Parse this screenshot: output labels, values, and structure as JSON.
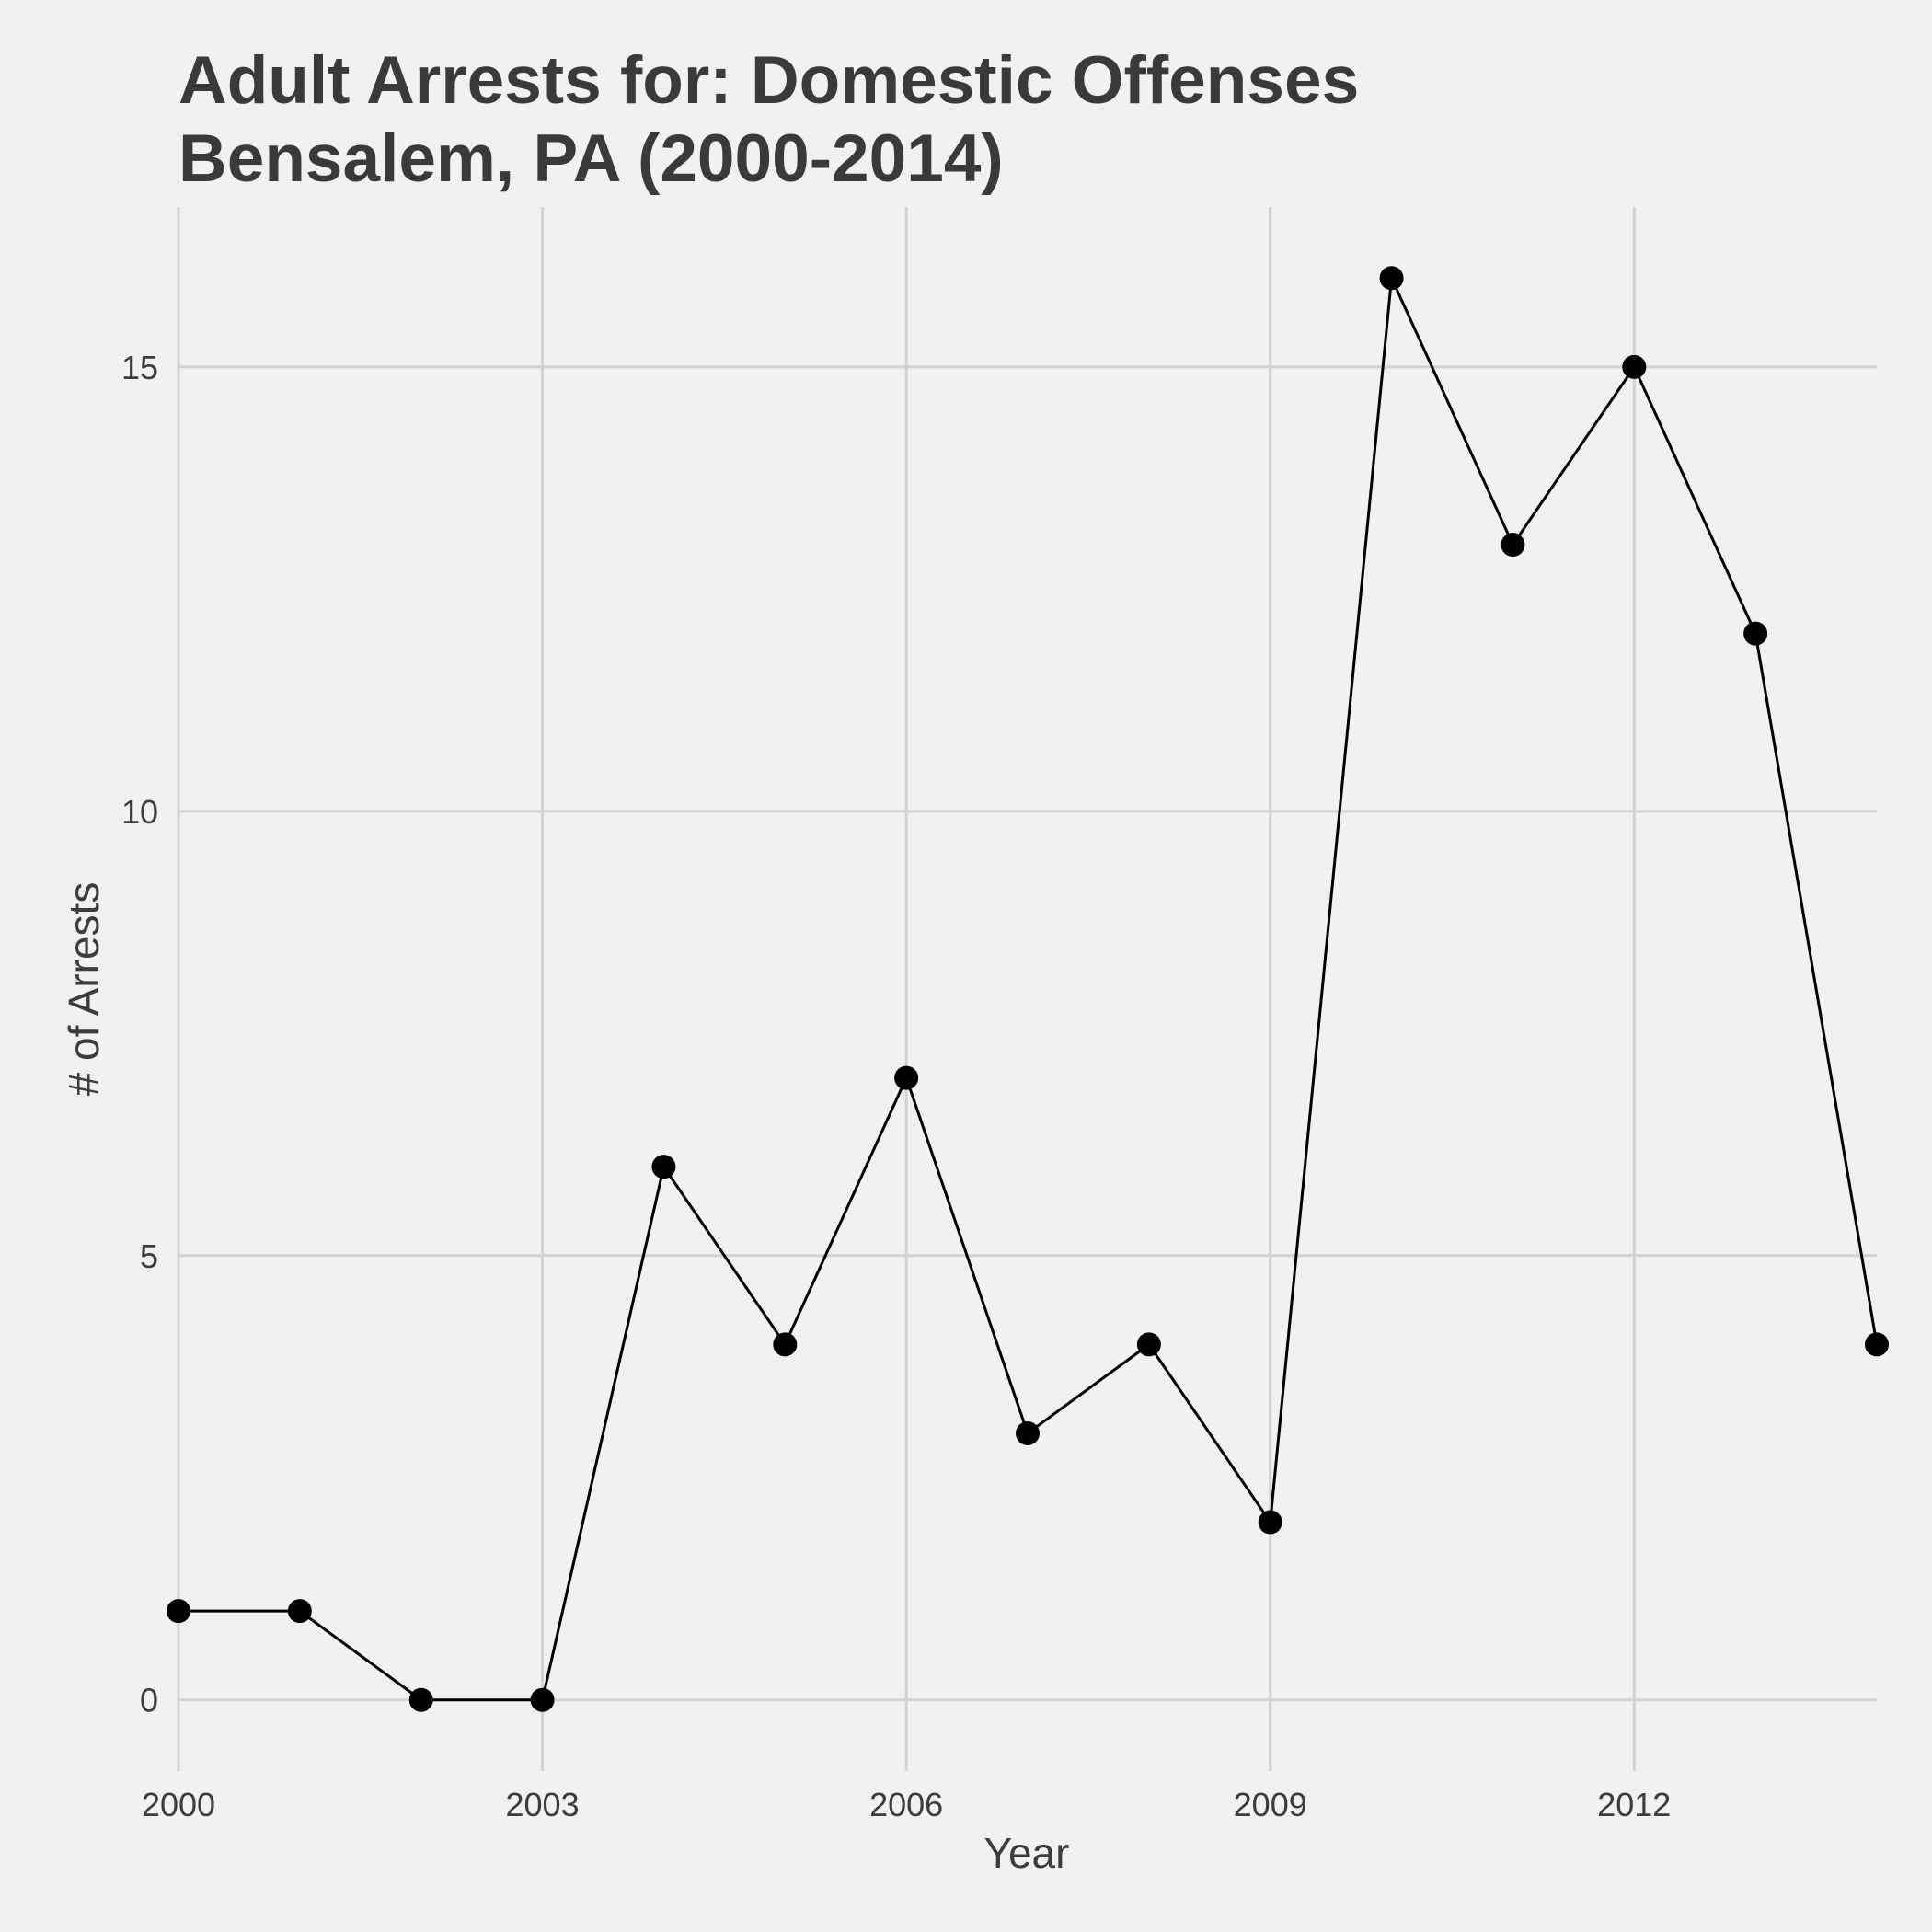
{
  "chart_data": {
    "type": "line",
    "title": "Adult Arrests for: Domestic Offenses",
    "subtitle": "Bensalem, PA (2000-2014)",
    "xlabel": "Year",
    "ylabel": "# of Arrests",
    "x": [
      2000,
      2001,
      2002,
      2003,
      2004,
      2005,
      2006,
      2007,
      2008,
      2009,
      2010,
      2011,
      2012,
      2013,
      2014
    ],
    "series": [
      {
        "values": [
          1,
          1,
          0,
          0,
          6,
          4,
          7,
          3,
          4,
          2,
          16,
          13,
          15,
          12,
          4
        ]
      }
    ],
    "xlim": [
      2000,
      2014
    ],
    "ylim": [
      -0.8,
      16.8
    ],
    "xticks": [
      2000,
      2003,
      2006,
      2009,
      2012
    ],
    "xtick_labels": [
      "2000",
      "2003",
      "2006",
      "2009",
      "2012"
    ],
    "yticks": [
      0,
      5,
      10,
      15
    ],
    "ytick_labels": [
      "0",
      "5",
      "10",
      "15"
    ],
    "grid": true,
    "legend": "none",
    "colors": {
      "background": "#f1f1f1",
      "grid": "#d2d2d2",
      "line": "#000000",
      "points": "#000000",
      "text": "#3a3a3a"
    }
  }
}
